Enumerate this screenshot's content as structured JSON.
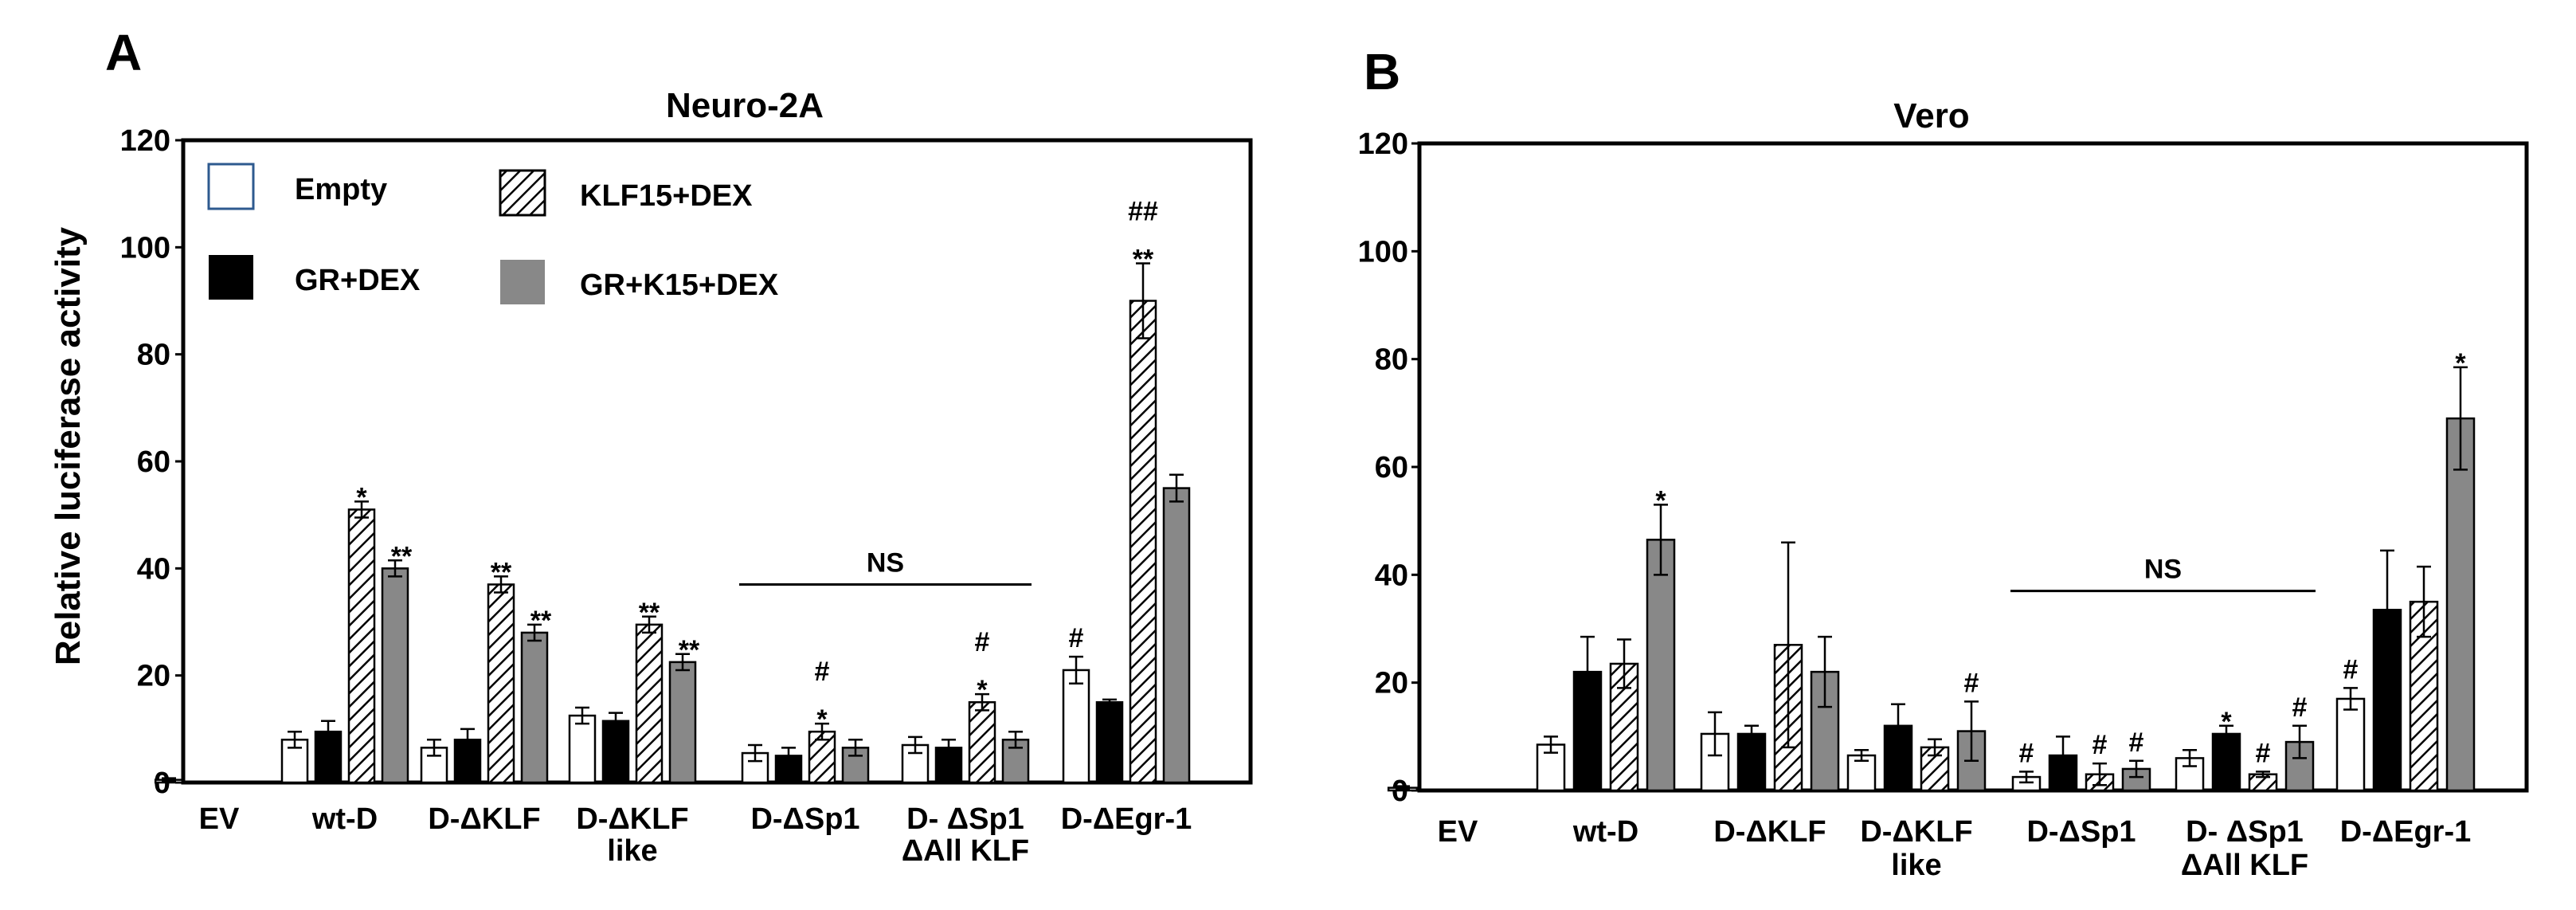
{
  "panels": {
    "A": {
      "letter": "A",
      "title": "Neuro-2A"
    },
    "B": {
      "letter": "B",
      "title": "Vero"
    }
  },
  "y_axis_label": "Relative luciferase activity",
  "colors": {
    "empty": "#ffffff",
    "gr_dex": "#000000",
    "klf15_dex": "hatched",
    "gr_k15_dex": "#888888"
  },
  "chart_data": [
    {
      "type": "bar",
      "title": "Neuro-2A",
      "ylabel": "Relative luciferase activity",
      "ylim": [
        0,
        120
      ],
      "yticks": [
        "0",
        "20",
        "40",
        "60",
        "80",
        "100",
        "120"
      ],
      "categories": [
        {
          "line1": "EV",
          "line2": ""
        },
        {
          "line1": "wt-D",
          "line2": ""
        },
        {
          "line1": "D-ΔKLF",
          "line2": ""
        },
        {
          "line1": "D-ΔKLF",
          "line2": "like"
        },
        {
          "line1": "D-ΔSp1",
          "line2": ""
        },
        {
          "line1": "D- ΔSp1",
          "line2": "ΔAll KLF"
        },
        {
          "line1": "D-ΔEgr-1",
          "line2": ""
        }
      ],
      "series": [
        {
          "name": "Empty",
          "values": [
            0.5,
            8,
            6.5,
            12.5,
            5.5,
            7,
            21
          ],
          "errors": [
            0.3,
            1.5,
            1.5,
            1.5,
            1.5,
            1.5,
            2.5
          ]
        },
        {
          "name": "GR+DEX",
          "values": [
            null,
            9.5,
            8,
            11.5,
            5,
            6.5,
            15
          ],
          "errors": [
            null,
            2,
            2,
            1.5,
            1.5,
            1.5,
            0.5
          ]
        },
        {
          "name": "KLF15+DEX",
          "values": [
            null,
            51,
            37,
            29.5,
            9.5,
            15,
            90
          ],
          "errors": [
            null,
            1.5,
            1.5,
            1.5,
            1.5,
            1.5,
            7
          ]
        },
        {
          "name": "GR+K15+DEX",
          "values": [
            null,
            40,
            28,
            22.5,
            6.5,
            8,
            55
          ],
          "errors": [
            null,
            1.5,
            1.5,
            1.5,
            1.5,
            1.5,
            2.5
          ]
        }
      ],
      "annotations": [
        {
          "cat": 1,
          "series": 2,
          "text": [
            "*"
          ]
        },
        {
          "cat": 1,
          "series": 3,
          "text": [
            "**"
          ]
        },
        {
          "cat": 2,
          "series": 2,
          "text": [
            "**"
          ]
        },
        {
          "cat": 2,
          "series": 3,
          "text": [
            "**"
          ]
        },
        {
          "cat": 3,
          "series": 2,
          "text": [
            "**"
          ]
        },
        {
          "cat": 3,
          "series": 3,
          "text": [
            "**"
          ]
        },
        {
          "cat": 4,
          "series": 2,
          "text": [
            "*",
            "#"
          ]
        },
        {
          "cat": 5,
          "series": 2,
          "text": [
            "*",
            "#"
          ]
        },
        {
          "cat": 6,
          "series": 0,
          "text": [
            "#"
          ]
        },
        {
          "cat": 6,
          "series": 2,
          "text": [
            "**",
            "##"
          ]
        }
      ],
      "ns_label": "NS",
      "ns_span": [
        4,
        5
      ],
      "ns_value": 37,
      "legend": [
        "Empty",
        "GR+DEX",
        "KLF15+DEX",
        "GR+K15+DEX"
      ]
    },
    {
      "type": "bar",
      "title": "Vero",
      "ylabel": "",
      "ylim": [
        0,
        120
      ],
      "yticks": [
        "0",
        "20",
        "40",
        "60",
        "80",
        "100",
        "120"
      ],
      "categories": [
        {
          "line1": "EV",
          "line2": ""
        },
        {
          "line1": "wt-D",
          "line2": ""
        },
        {
          "line1": "D-ΔKLF",
          "line2": ""
        },
        {
          "line1": "D-ΔKLF",
          "line2": "like"
        },
        {
          "line1": "D-ΔSp1",
          "line2": ""
        },
        {
          "line1": "D- ΔSp1",
          "line2": "ΔAll KLF"
        },
        {
          "line1": "D-ΔEgr-1",
          "line2": ""
        }
      ],
      "series": [
        {
          "name": "Empty",
          "values": [
            0.5,
            8.5,
            10.5,
            6.5,
            2.5,
            6,
            17
          ],
          "errors": [
            0.3,
            1.5,
            4,
            1,
            1,
            1.5,
            2
          ]
        },
        {
          "name": "GR+DEX",
          "values": [
            null,
            22,
            10.5,
            12,
            6.5,
            10.5,
            33.5
          ],
          "errors": [
            null,
            6.5,
            1.5,
            4,
            3.5,
            1.5,
            11
          ]
        },
        {
          "name": "KLF15+DEX",
          "values": [
            null,
            23.5,
            27,
            8,
            3,
            3,
            35
          ],
          "errors": [
            null,
            4.5,
            19,
            1.5,
            2,
            0.5,
            6.5
          ]
        },
        {
          "name": "GR+K15+DEX",
          "values": [
            null,
            46.5,
            22,
            11,
            4,
            9,
            69
          ],
          "errors": [
            null,
            6.5,
            6.5,
            5.5,
            1.5,
            3,
            9.5
          ]
        }
      ],
      "annotations": [
        {
          "cat": 1,
          "series": 3,
          "text": [
            "*"
          ]
        },
        {
          "cat": 3,
          "series": 3,
          "text": [
            "#"
          ]
        },
        {
          "cat": 4,
          "series": 0,
          "text": [
            "#"
          ]
        },
        {
          "cat": 4,
          "series": 2,
          "text": [
            "#"
          ]
        },
        {
          "cat": 4,
          "series": 3,
          "text": [
            "#"
          ]
        },
        {
          "cat": 5,
          "series": 1,
          "text": [
            "*"
          ]
        },
        {
          "cat": 5,
          "series": 2,
          "text": [
            "#"
          ]
        },
        {
          "cat": 5,
          "series": 3,
          "text": [
            "#"
          ]
        },
        {
          "cat": 6,
          "series": 0,
          "text": [
            "#"
          ]
        },
        {
          "cat": 6,
          "series": 3,
          "text": [
            "*"
          ]
        }
      ],
      "ns_label": "NS",
      "ns_span": [
        4,
        5
      ],
      "ns_value": 37
    }
  ]
}
